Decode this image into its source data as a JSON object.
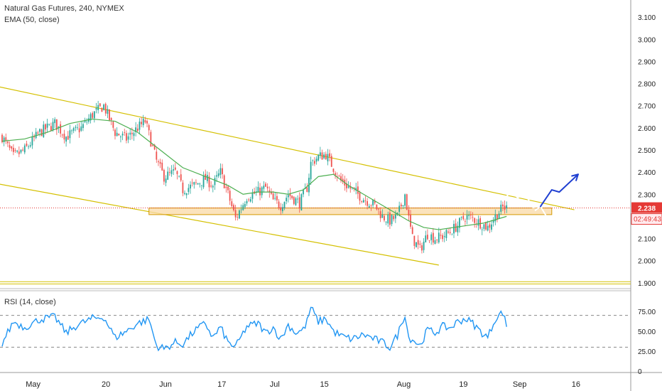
{
  "header": {
    "title": "Natural Gas Futures, 240, NYMEX",
    "ema_label": "EMA (50, close)",
    "rsi_label": "RSI (14, close)"
  },
  "colors": {
    "up": "#26a69a",
    "down": "#ef5350",
    "ema": "#4caf50",
    "channel": "#d4c000",
    "support_fill": "#f9d9a6",
    "support_stroke": "#d49a00",
    "price_line": "#e53935",
    "rsi": "#2196f3",
    "forecast_blue": "#1f3fd1",
    "forecast_white": "#ffffff"
  },
  "price_axis": {
    "ticks": [
      "3.100",
      "3.000",
      "2.900",
      "2.800",
      "2.700",
      "2.600",
      "2.500",
      "2.400",
      "2.300",
      "2.200",
      "2.100",
      "2.000",
      "1.900"
    ],
    "current_price": "2.238",
    "countdown": "02:49:43"
  },
  "rsi_axis": {
    "ticks": [
      "75.00",
      "50.00",
      "25.00",
      "0"
    ]
  },
  "time_axis": {
    "labels": [
      "May",
      "20",
      "Jun",
      "17",
      "Jul",
      "15",
      "Aug",
      "19",
      "Sep",
      "16"
    ]
  },
  "chart_data": {
    "type": "candlestick",
    "instrument": "Natural Gas Futures",
    "timeframe": "240",
    "exchange": "NYMEX",
    "ylim": [
      1.88,
      3.12
    ],
    "current_price": 2.238,
    "price_path": [
      [
        0,
        2.56
      ],
      [
        3,
        2.47
      ],
      [
        6,
        2.5
      ],
      [
        10,
        2.58
      ],
      [
        14,
        2.62
      ],
      [
        17,
        2.56
      ],
      [
        21,
        2.6
      ],
      [
        24,
        2.66
      ],
      [
        27,
        2.7
      ],
      [
        30,
        2.58
      ],
      [
        33,
        2.55
      ],
      [
        36,
        2.6
      ],
      [
        38,
        2.63
      ],
      [
        41,
        2.45
      ],
      [
        43,
        2.38
      ],
      [
        46,
        2.4
      ],
      [
        48,
        2.32
      ],
      [
        51,
        2.34
      ],
      [
        54,
        2.37
      ],
      [
        56,
        2.34
      ],
      [
        58,
        2.4
      ],
      [
        60,
        2.3
      ],
      [
        62,
        2.19
      ],
      [
        65,
        2.29
      ],
      [
        68,
        2.31
      ],
      [
        70,
        2.33
      ],
      [
        72,
        2.27
      ],
      [
        74,
        2.25
      ],
      [
        76,
        2.3
      ],
      [
        79,
        2.26
      ],
      [
        81,
        2.33
      ],
      [
        82,
        2.44
      ],
      [
        84,
        2.47
      ],
      [
        86,
        2.48
      ],
      [
        88,
        2.42
      ],
      [
        90,
        2.36
      ],
      [
        93,
        2.32
      ],
      [
        96,
        2.28
      ],
      [
        99,
        2.25
      ],
      [
        101,
        2.2
      ],
      [
        103,
        2.18
      ],
      [
        105,
        2.2
      ],
      [
        107,
        2.3
      ],
      [
        108,
        2.19
      ],
      [
        109,
        2.1
      ],
      [
        111,
        2.05
      ],
      [
        113,
        2.12
      ],
      [
        115,
        2.1
      ],
      [
        117,
        2.11
      ],
      [
        119,
        2.13
      ],
      [
        121,
        2.16
      ],
      [
        123,
        2.2
      ],
      [
        125,
        2.19
      ],
      [
        127,
        2.17
      ],
      [
        129,
        2.15
      ],
      [
        131,
        2.2
      ],
      [
        133,
        2.24
      ],
      [
        134,
        2.238
      ]
    ],
    "ema_path": [
      [
        0,
        2.54
      ],
      [
        6,
        2.55
      ],
      [
        12,
        2.58
      ],
      [
        18,
        2.62
      ],
      [
        24,
        2.64
      ],
      [
        30,
        2.63
      ],
      [
        36,
        2.58
      ],
      [
        42,
        2.5
      ],
      [
        48,
        2.42
      ],
      [
        54,
        2.38
      ],
      [
        60,
        2.34
      ],
      [
        64,
        2.3
      ],
      [
        68,
        2.31
      ],
      [
        72,
        2.31
      ],
      [
        76,
        2.3
      ],
      [
        80,
        2.32
      ],
      [
        84,
        2.38
      ],
      [
        88,
        2.39
      ],
      [
        92,
        2.34
      ],
      [
        96,
        2.3
      ],
      [
        100,
        2.26
      ],
      [
        104,
        2.22
      ],
      [
        108,
        2.18
      ],
      [
        112,
        2.15
      ],
      [
        116,
        2.14
      ],
      [
        120,
        2.15
      ],
      [
        124,
        2.16
      ],
      [
        128,
        2.17
      ],
      [
        132,
        2.19
      ],
      [
        134,
        2.2
      ]
    ],
    "rsi_path": [
      [
        0,
        35
      ],
      [
        3,
        62
      ],
      [
        6,
        55
      ],
      [
        10,
        65
      ],
      [
        14,
        68
      ],
      [
        17,
        48
      ],
      [
        20,
        58
      ],
      [
        24,
        66
      ],
      [
        27,
        68
      ],
      [
        30,
        42
      ],
      [
        33,
        50
      ],
      [
        36,
        60
      ],
      [
        39,
        65
      ],
      [
        41,
        32
      ],
      [
        43,
        28
      ],
      [
        46,
        36
      ],
      [
        48,
        34
      ],
      [
        51,
        50
      ],
      [
        54,
        60
      ],
      [
        56,
        42
      ],
      [
        58,
        55
      ],
      [
        60,
        36
      ],
      [
        62,
        30
      ],
      [
        65,
        56
      ],
      [
        68,
        60
      ],
      [
        70,
        48
      ],
      [
        72,
        55
      ],
      [
        74,
        40
      ],
      [
        76,
        58
      ],
      [
        78,
        48
      ],
      [
        80,
        52
      ],
      [
        81,
        62
      ],
      [
        82,
        80
      ],
      [
        84,
        62
      ],
      [
        86,
        66
      ],
      [
        88,
        50
      ],
      [
        90,
        44
      ],
      [
        93,
        40
      ],
      [
        96,
        46
      ],
      [
        99,
        40
      ],
      [
        101,
        36
      ],
      [
        103,
        30
      ],
      [
        105,
        45
      ],
      [
        107,
        72
      ],
      [
        108,
        42
      ],
      [
        109,
        40
      ],
      [
        111,
        32
      ],
      [
        113,
        52
      ],
      [
        115,
        48
      ],
      [
        117,
        56
      ],
      [
        119,
        54
      ],
      [
        121,
        62
      ],
      [
        123,
        66
      ],
      [
        125,
        60
      ],
      [
        127,
        50
      ],
      [
        129,
        42
      ],
      [
        131,
        66
      ],
      [
        133,
        74
      ],
      [
        134,
        56
      ]
    ],
    "rsi_levels": [
      70,
      30
    ],
    "rsi_ylim": [
      0,
      100
    ],
    "channel": {
      "upper": [
        [
          -2,
          2.79
        ],
        [
          152,
          2.23
        ]
      ],
      "lower": [
        [
          -2,
          2.35
        ],
        [
          116,
          1.98
        ]
      ]
    },
    "support_zone": {
      "x": [
        39,
        146
      ],
      "y": [
        2.208,
        2.238
      ]
    },
    "bounds_lines": {
      "y": [
        1.905,
        1.895
      ]
    },
    "forecast_white_up": [
      [
        129,
        2.25
      ],
      [
        131,
        2.295
      ],
      [
        133,
        2.27
      ],
      [
        135,
        2.31
      ],
      [
        137,
        2.285
      ],
      [
        139,
        2.3
      ],
      [
        141,
        2.24
      ],
      [
        143,
        2.245
      ]
    ],
    "forecast_white_down": [
      [
        143,
        2.245
      ],
      [
        146,
        2.16
      ]
    ],
    "forecast_blue": [
      [
        143,
        2.245
      ],
      [
        146,
        2.32
      ],
      [
        148,
        2.31
      ],
      [
        153,
        2.39
      ]
    ]
  }
}
